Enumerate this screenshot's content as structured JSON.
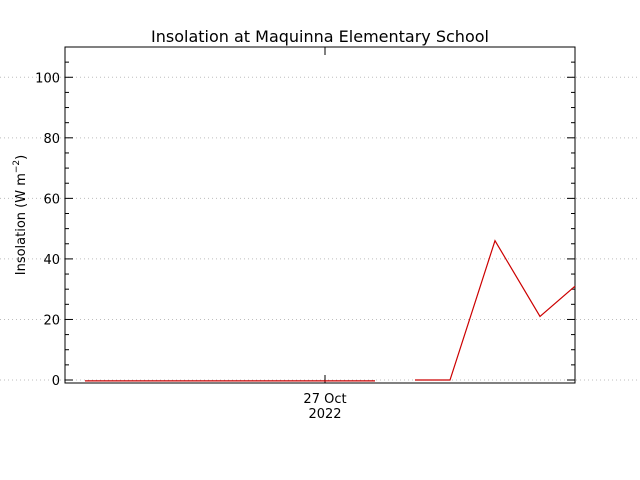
{
  "chart_data": {
    "type": "line",
    "title": "Insolation at Maquinna Elementary School",
    "ylabel_main": "Insolation (W m",
    "ylabel_sup": "−2",
    "ylabel_close": ")",
    "ylim": [
      0,
      110
    ],
    "y_ticks": [
      0,
      20,
      40,
      60,
      80,
      100
    ],
    "grid": true,
    "x_tick_label": "27 Oct",
    "x_tick_label_2": "2022",
    "series": [
      {
        "color": "#cc0000",
        "segments": [
          [
            [
              0.0,
              -0.3
            ],
            [
              29.0,
              -0.3
            ]
          ],
          [
            [
              33.0,
              0.0
            ],
            [
              36.5,
              0.0
            ],
            [
              41.0,
              46.0
            ],
            [
              45.5,
              21.0
            ],
            [
              49.0,
              31.0
            ]
          ]
        ]
      }
    ],
    "xlim": [
      -2.0,
      49.0
    ],
    "x_tick_at": 24.0
  }
}
